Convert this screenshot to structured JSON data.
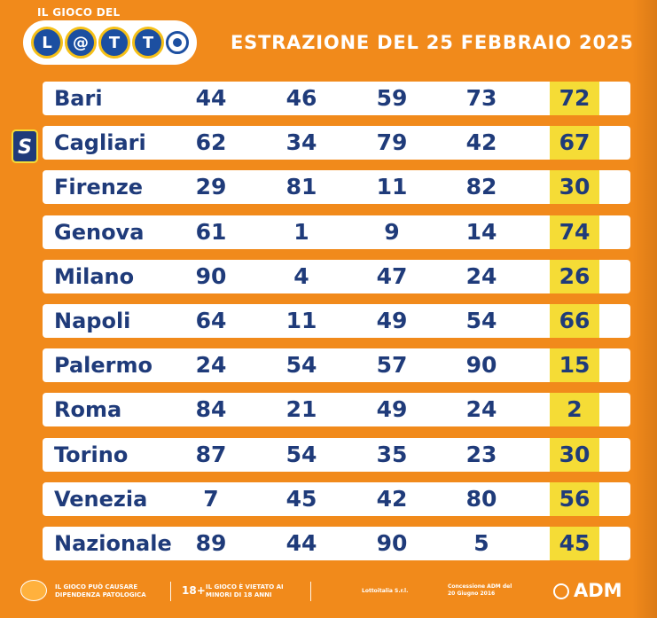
{
  "header": {
    "logo_top": "IL GIOCO DEL",
    "logo_letters": [
      "L",
      "T",
      "T"
    ],
    "title": "ESTRAZIONE DEL 25 FEBBRAIO 2025"
  },
  "badge": "S",
  "rows": [
    {
      "city": "Bari",
      "n": [
        "44",
        "46",
        "59",
        "73",
        "72"
      ]
    },
    {
      "city": "Cagliari",
      "n": [
        "62",
        "34",
        "79",
        "42",
        "67"
      ]
    },
    {
      "city": "Firenze",
      "n": [
        "29",
        "81",
        "11",
        "82",
        "30"
      ]
    },
    {
      "city": "Genova",
      "n": [
        "61",
        "1",
        "9",
        "14",
        "74"
      ]
    },
    {
      "city": "Milano",
      "n": [
        "90",
        "4",
        "47",
        "24",
        "26"
      ]
    },
    {
      "city": "Napoli",
      "n": [
        "64",
        "11",
        "49",
        "54",
        "66"
      ]
    },
    {
      "city": "Palermo",
      "n": [
        "24",
        "54",
        "57",
        "90",
        "15"
      ]
    },
    {
      "city": "Roma",
      "n": [
        "84",
        "21",
        "49",
        "24",
        "2"
      ]
    },
    {
      "city": "Torino",
      "n": [
        "87",
        "54",
        "35",
        "23",
        "30"
      ]
    },
    {
      "city": "Venezia",
      "n": [
        "7",
        "45",
        "42",
        "80",
        "56"
      ]
    },
    {
      "city": "Nazionale",
      "n": [
        "89",
        "44",
        "90",
        "5",
        "45"
      ]
    }
  ],
  "footer": {
    "warning1": "IL GIOCO PUÒ CAUSARE DIPENDENZA PATOLOGICA",
    "age": "18+",
    "warning2": "IL GIOCO È VIETATO AI MINORI DI 18 ANNI",
    "operator": "Lottoitalia S.r.l.",
    "concession": "Concessione ADM del 20 Giugno 2016",
    "adm": "ADM"
  },
  "colors": {
    "background": "#f18a1b",
    "text_blue": "#1f3b7a",
    "highlight": "#f5dc36"
  }
}
